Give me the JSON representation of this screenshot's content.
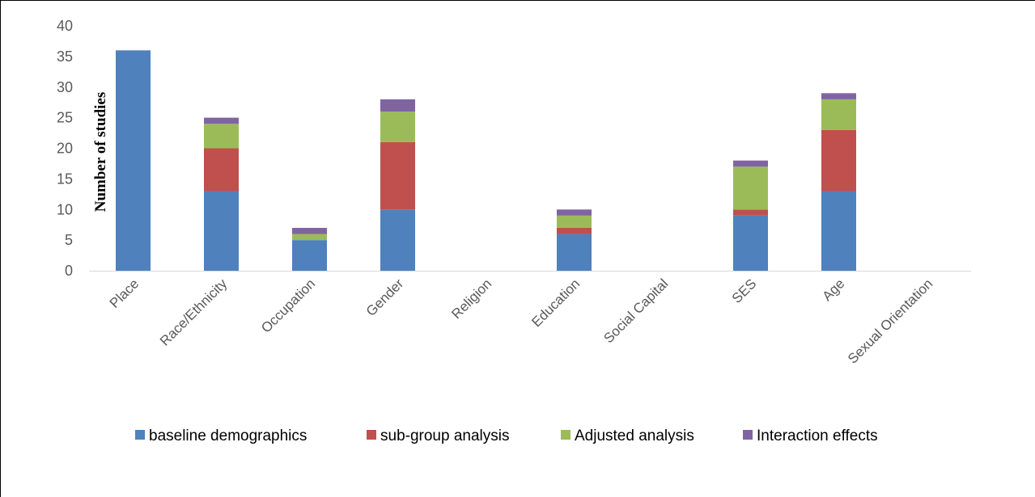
{
  "chart_data": {
    "type": "bar",
    "stacked": true,
    "title": "",
    "xlabel": "",
    "ylabel": "Number of studies",
    "ylim": [
      0,
      40
    ],
    "yticks": [
      0,
      5,
      10,
      15,
      20,
      25,
      30,
      35,
      40
    ],
    "grid": false,
    "legend_position": "bottom",
    "categories": [
      "Place",
      "Race/Ethnicity",
      "Occupation",
      "Gender",
      "Religion",
      "Education",
      "Social Capital",
      "SES",
      "Age",
      "Sexual Orientation"
    ],
    "series": [
      {
        "name": "baseline demographics",
        "color": "#4F81BD",
        "values": [
          36,
          13,
          5,
          10,
          0,
          6,
          0,
          9,
          13,
          0
        ]
      },
      {
        "name": "sub-group analysis",
        "color": "#C0504D",
        "values": [
          0,
          7,
          0,
          11,
          0,
          1,
          0,
          1,
          10,
          0
        ]
      },
      {
        "name": "Adjusted analysis",
        "color": "#9BBB59",
        "values": [
          0,
          4,
          1,
          5,
          0,
          2,
          0,
          7,
          5,
          0
        ]
      },
      {
        "name": "Interaction effects",
        "color": "#8064A2",
        "values": [
          0,
          1,
          1,
          2,
          0,
          1,
          0,
          1,
          1,
          0
        ]
      }
    ]
  }
}
